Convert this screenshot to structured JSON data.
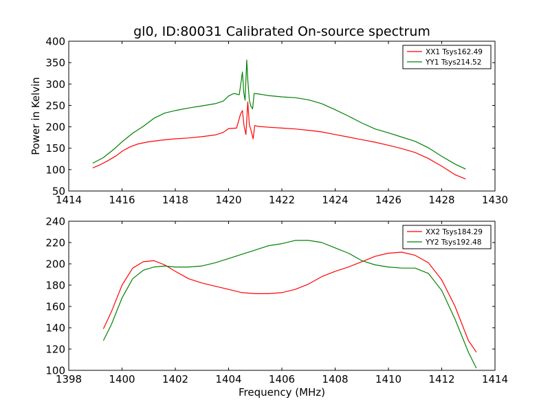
{
  "title": "gl0, ID:80031 Calibrated On-source spectrum",
  "chart_data": [
    {
      "type": "line",
      "ylabel": "Power in Kelvin",
      "xlabel": "",
      "xlim": [
        1414,
        1430
      ],
      "ylim": [
        50,
        400
      ],
      "xticks": [
        1414,
        1416,
        1418,
        1420,
        1422,
        1424,
        1426,
        1428,
        1430
      ],
      "yticks": [
        50,
        100,
        150,
        200,
        250,
        300,
        350,
        400
      ],
      "legend_position": "top-right",
      "series": [
        {
          "name": "XX1 Tsys162.49",
          "color": "#ff0000",
          "points": [
            [
              1414.9,
              104
            ],
            [
              1415.2,
              112
            ],
            [
              1415.5,
              122
            ],
            [
              1415.8,
              133
            ],
            [
              1416.0,
              143
            ],
            [
              1416.3,
              153
            ],
            [
              1416.6,
              160
            ],
            [
              1417.0,
              165
            ],
            [
              1417.5,
              169
            ],
            [
              1418.0,
              172
            ],
            [
              1418.5,
              174
            ],
            [
              1419.0,
              177
            ],
            [
              1419.5,
              181
            ],
            [
              1419.8,
              187
            ],
            [
              1420.0,
              196
            ],
            [
              1420.3,
              197
            ],
            [
              1420.45,
              230
            ],
            [
              1420.52,
              238
            ],
            [
              1420.58,
              202
            ],
            [
              1420.65,
              182
            ],
            [
              1420.72,
              258
            ],
            [
              1420.78,
              205
            ],
            [
              1420.85,
              190
            ],
            [
              1420.92,
              172
            ],
            [
              1420.98,
              203
            ],
            [
              1421.1,
              201
            ],
            [
              1421.5,
              199
            ],
            [
              1422.0,
              197
            ],
            [
              1422.5,
              195
            ],
            [
              1423.0,
              192
            ],
            [
              1423.5,
              188
            ],
            [
              1424.0,
              182
            ],
            [
              1424.5,
              176
            ],
            [
              1425.0,
              170
            ],
            [
              1425.5,
              164
            ],
            [
              1426.0,
              157
            ],
            [
              1426.5,
              149
            ],
            [
              1427.0,
              140
            ],
            [
              1427.5,
              126
            ],
            [
              1428.0,
              108
            ],
            [
              1428.5,
              88
            ],
            [
              1428.9,
              78
            ]
          ]
        },
        {
          "name": "YY1 Tsys214.52",
          "color": "#008000",
          "points": [
            [
              1414.9,
              115
            ],
            [
              1415.3,
              128
            ],
            [
              1415.7,
              148
            ],
            [
              1416.0,
              165
            ],
            [
              1416.4,
              185
            ],
            [
              1416.8,
              201
            ],
            [
              1417.2,
              220
            ],
            [
              1417.6,
              232
            ],
            [
              1418.0,
              238
            ],
            [
              1418.5,
              244
            ],
            [
              1419.0,
              249
            ],
            [
              1419.5,
              254
            ],
            [
              1419.8,
              260
            ],
            [
              1420.0,
              272
            ],
            [
              1420.2,
              278
            ],
            [
              1420.4,
              275
            ],
            [
              1420.48,
              310
            ],
            [
              1420.52,
              328
            ],
            [
              1420.57,
              280
            ],
            [
              1420.62,
              262
            ],
            [
              1420.68,
              356
            ],
            [
              1420.72,
              310
            ],
            [
              1420.78,
              262
            ],
            [
              1420.84,
              248
            ],
            [
              1420.9,
              242
            ],
            [
              1420.96,
              278
            ],
            [
              1421.1,
              277
            ],
            [
              1421.5,
              273
            ],
            [
              1422.0,
              270
            ],
            [
              1422.5,
              268
            ],
            [
              1423.0,
              263
            ],
            [
              1423.5,
              254
            ],
            [
              1424.0,
              240
            ],
            [
              1424.5,
              225
            ],
            [
              1425.0,
              209
            ],
            [
              1425.5,
              195
            ],
            [
              1426.0,
              186
            ],
            [
              1426.5,
              176
            ],
            [
              1427.0,
              166
            ],
            [
              1427.5,
              151
            ],
            [
              1428.0,
              131
            ],
            [
              1428.5,
              113
            ],
            [
              1428.9,
              101
            ]
          ]
        }
      ]
    },
    {
      "type": "line",
      "xlabel": "Frequency (MHz)",
      "ylabel": "",
      "xlim": [
        1398,
        1414
      ],
      "ylim": [
        100,
        240
      ],
      "xticks": [
        1398,
        1400,
        1402,
        1404,
        1406,
        1408,
        1410,
        1412,
        1414
      ],
      "yticks": [
        100,
        120,
        140,
        160,
        180,
        200,
        220,
        240
      ],
      "legend_position": "top-right",
      "series": [
        {
          "name": "XX2 Tsys184.29",
          "color": "#ff0000",
          "points": [
            [
              1399.3,
              139
            ],
            [
              1399.6,
              155
            ],
            [
              1400.0,
              180
            ],
            [
              1400.4,
              196
            ],
            [
              1400.8,
              202
            ],
            [
              1401.2,
              203
            ],
            [
              1401.6,
              199
            ],
            [
              1402.0,
              193
            ],
            [
              1402.5,
              186
            ],
            [
              1403.0,
              182
            ],
            [
              1403.5,
              179
            ],
            [
              1404.0,
              176
            ],
            [
              1404.5,
              173
            ],
            [
              1405.0,
              172
            ],
            [
              1405.5,
              172
            ],
            [
              1406.0,
              173
            ],
            [
              1406.5,
              176
            ],
            [
              1407.0,
              181
            ],
            [
              1407.5,
              188
            ],
            [
              1408.0,
              193
            ],
            [
              1408.5,
              197
            ],
            [
              1409.0,
              202
            ],
            [
              1409.5,
              207
            ],
            [
              1410.0,
              210
            ],
            [
              1410.5,
              211
            ],
            [
              1411.0,
              208
            ],
            [
              1411.5,
              201
            ],
            [
              1412.0,
              185
            ],
            [
              1412.5,
              160
            ],
            [
              1413.0,
              128
            ],
            [
              1413.3,
              117
            ]
          ]
        },
        {
          "name": "YY2 Tsys192.48",
          "color": "#008000",
          "points": [
            [
              1399.3,
              128
            ],
            [
              1399.6,
              143
            ],
            [
              1400.0,
              168
            ],
            [
              1400.4,
              186
            ],
            [
              1400.8,
              194
            ],
            [
              1401.2,
              197
            ],
            [
              1401.6,
              198
            ],
            [
              1402.0,
              197
            ],
            [
              1402.5,
              197
            ],
            [
              1403.0,
              198
            ],
            [
              1403.5,
              201
            ],
            [
              1404.0,
              205
            ],
            [
              1404.5,
              209
            ],
            [
              1405.0,
              213
            ],
            [
              1405.5,
              217
            ],
            [
              1406.0,
              219
            ],
            [
              1406.5,
              222
            ],
            [
              1407.0,
              222
            ],
            [
              1407.5,
              220
            ],
            [
              1408.0,
              215
            ],
            [
              1408.5,
              210
            ],
            [
              1409.0,
              203
            ],
            [
              1409.5,
              199
            ],
            [
              1410.0,
              197
            ],
            [
              1410.5,
              196
            ],
            [
              1411.0,
              196
            ],
            [
              1411.5,
              191
            ],
            [
              1412.0,
              175
            ],
            [
              1412.5,
              148
            ],
            [
              1413.0,
              117
            ],
            [
              1413.3,
              102
            ]
          ]
        }
      ]
    }
  ]
}
